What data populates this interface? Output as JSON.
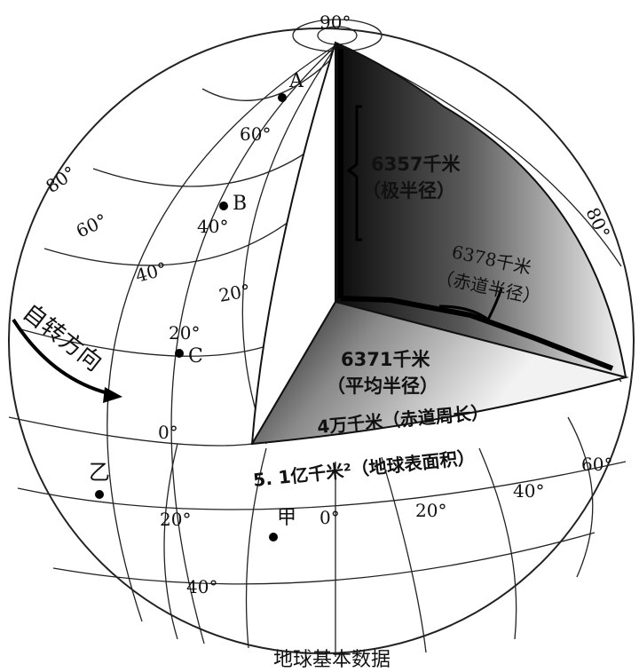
{
  "caption": "地球基本数据",
  "pole_label": "90°",
  "data_labels": {
    "polar_radius": "6357千米",
    "polar_radius_note": "（极半径）",
    "equatorial_radius": "6378千米",
    "equatorial_radius_note": "（赤道半径）",
    "mean_radius": "6371千米",
    "mean_radius_note": "（平均半径）",
    "equator_circumference": "4万千米（赤道周长）",
    "surface_area": "5. 1亿千米²（地球表面积）"
  },
  "rotation_label": "自转方向",
  "points": {
    "A": "A",
    "B": "B",
    "C": "C",
    "jia": "甲",
    "yi": "乙"
  },
  "latitude_labels": {
    "lat60": "60°",
    "lat40": "40°",
    "lat20": "20°",
    "equator": "0°",
    "lat20s": "20°",
    "lat40s": "40°"
  },
  "longitude_labels": {
    "w80": "80°",
    "w60": "60°",
    "w40": "40°",
    "w20": "20°",
    "e0": "0°",
    "e20": "20°",
    "e40": "40°",
    "e60": "60°",
    "e80": "80°"
  },
  "colors": {
    "line": "#222222",
    "interior_dark": "#111111",
    "interior_light": "#f2f2f2"
  }
}
